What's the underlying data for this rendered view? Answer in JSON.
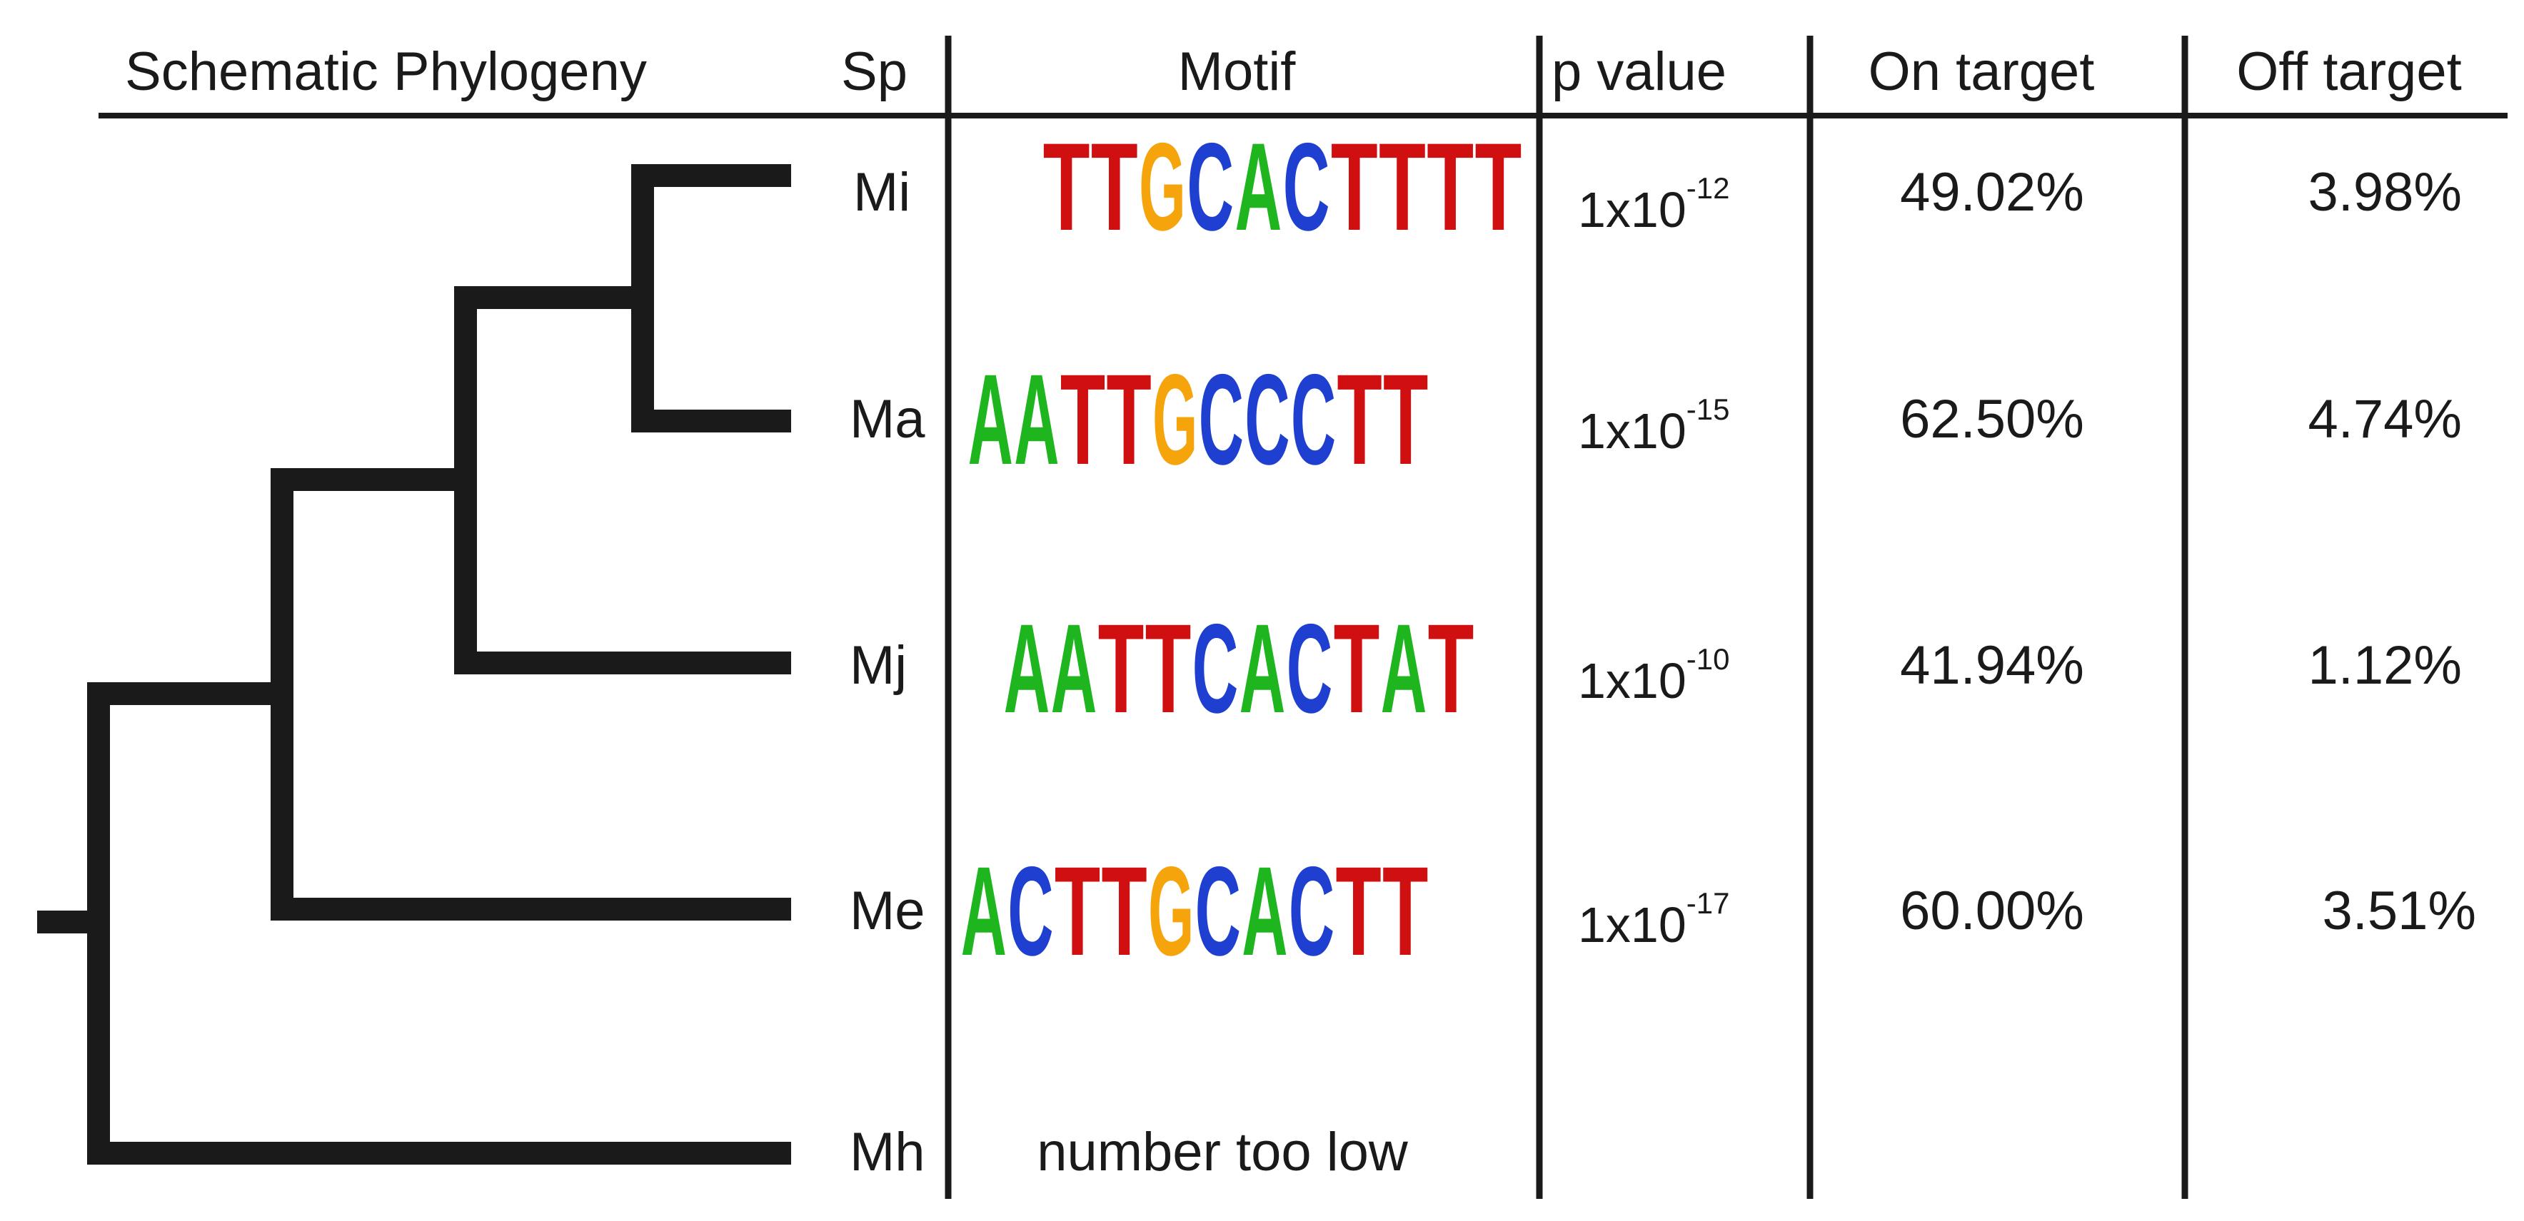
{
  "header": {
    "phylogeny": "Schematic Phylogeny",
    "species": "Sp",
    "motif": "Motif",
    "pvalue": "p value",
    "on_target": "On target",
    "off_target": "Off target"
  },
  "colors": {
    "A": "#1fb51f",
    "C": "#1f3fd0",
    "G": "#f5a40c",
    "T": "#d01010",
    "line": "#1a1a1a"
  },
  "rows": [
    {
      "species": "Mi",
      "motif": "TTGCACTTTT",
      "pvalue_base": "1x10",
      "pvalue_exp": "-12",
      "on_target": "49.02%",
      "off_target": "3.98%"
    },
    {
      "species": "Ma",
      "motif": "AATTGCCCTT",
      "pvalue_base": "1x10",
      "pvalue_exp": "-15",
      "on_target": "62.50%",
      "off_target": "4.74%"
    },
    {
      "species": "Mj",
      "motif": "AATTCACTAT",
      "pvalue_base": "1x10",
      "pvalue_exp": "-10",
      "on_target": "41.94%",
      "off_target": "1.12%"
    },
    {
      "species": "Me",
      "motif": "ACTTGCACTT",
      "pvalue_base": "1x10",
      "pvalue_exp": "-17",
      "on_target": "60.00%",
      "off_target": "3.51%"
    },
    {
      "species": "Mh",
      "motif_note": "number too low"
    }
  ]
}
